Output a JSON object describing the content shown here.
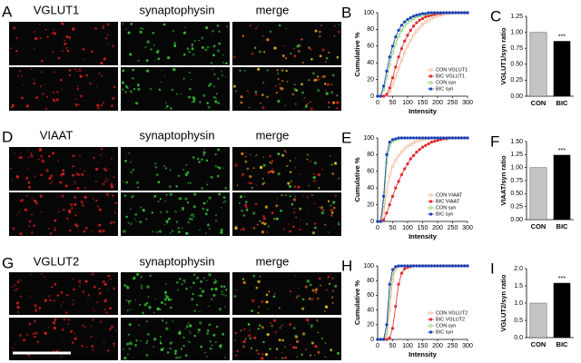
{
  "image_panels": [
    {
      "letter": "A",
      "labels": [
        "VGLUT1",
        "synaptophysin",
        "merge"
      ]
    },
    {
      "letter": "D",
      "labels": [
        "VIAAT",
        "synaptophysin",
        "merge"
      ]
    },
    {
      "letter": "G",
      "labels": [
        "VGLUT2",
        "synaptophysin",
        "merge"
      ]
    }
  ],
  "chart_data": [
    {
      "type": "line",
      "panel": "B",
      "x_label": "Intensity",
      "y_label": "Cumulative %",
      "x": [
        0,
        10,
        20,
        30,
        40,
        50,
        60,
        70,
        80,
        90,
        100,
        110,
        120,
        130,
        140,
        150,
        160,
        170,
        180,
        190,
        200,
        210,
        220,
        230,
        240,
        250,
        260,
        270,
        280,
        290,
        300
      ],
      "xlim": [
        0,
        300
      ],
      "xticks": [
        0,
        50,
        100,
        150,
        200,
        250,
        300
      ],
      "ylim": [
        0,
        100
      ],
      "yticks": [
        0,
        20,
        40,
        60,
        80,
        100
      ],
      "legend": "lower right",
      "series": [
        {
          "name": "CON VGLUT1",
          "color": "#f2a57a",
          "open": true,
          "values": [
            0,
            0,
            0,
            1,
            5,
            13,
            23,
            33,
            43,
            52,
            60,
            67,
            73,
            78,
            82,
            86,
            89,
            91,
            93,
            95,
            96,
            97,
            98,
            99,
            99,
            100,
            100,
            100,
            100,
            100,
            100
          ]
        },
        {
          "name": "BIC VGLUT1",
          "color": "#e3262a",
          "open": false,
          "values": [
            0,
            0,
            0,
            2,
            10,
            22,
            35,
            47,
            57,
            66,
            73,
            79,
            84,
            88,
            91,
            93,
            95,
            96,
            97,
            98,
            99,
            99,
            100,
            100,
            100,
            100,
            100,
            100,
            100,
            100,
            100
          ]
        },
        {
          "name": "CON syn",
          "color": "#6fc24b",
          "open": true,
          "values": [
            0,
            0,
            8,
            22,
            38,
            52,
            63,
            72,
            79,
            84,
            88,
            91,
            93,
            95,
            96,
            97,
            98,
            99,
            99,
            100,
            100,
            100,
            100,
            100,
            100,
            100,
            100,
            100,
            100,
            100,
            100
          ]
        },
        {
          "name": "BIC syn",
          "color": "#1d3fbf",
          "open": false,
          "values": [
            0,
            0,
            12,
            30,
            47,
            60,
            71,
            79,
            85,
            89,
            92,
            94,
            96,
            97,
            98,
            99,
            99,
            100,
            100,
            100,
            100,
            100,
            100,
            100,
            100,
            100,
            100,
            100,
            100,
            100,
            100
          ]
        }
      ]
    },
    {
      "type": "bar",
      "panel": "C",
      "y_label": "VGLUT1/syn ratio",
      "categories": [
        "CON",
        "BIC"
      ],
      "values": [
        1.0,
        0.86
      ],
      "colors": [
        "#c4c4c4",
        "#000000"
      ],
      "annotation": "***",
      "ylim": [
        0,
        1.25
      ],
      "yticks": [
        {
          "value": 0,
          "label": "0.00"
        },
        {
          "value": 0.25,
          "label": "0.25"
        },
        {
          "value": 0.5,
          "label": "0.50"
        },
        {
          "value": 0.75,
          "label": "0.75"
        },
        {
          "value": 1,
          "label": "1.00"
        },
        {
          "value": 1.25,
          "label": "1.25"
        }
      ]
    },
    {
      "type": "line",
      "panel": "E",
      "x_label": "Intensity",
      "y_label": "Cumulative %",
      "x": [
        0,
        10,
        20,
        30,
        40,
        50,
        60,
        70,
        80,
        90,
        100,
        110,
        120,
        130,
        140,
        150,
        160,
        170,
        180,
        190,
        200,
        210,
        220,
        230,
        240,
        250,
        260,
        270,
        280,
        290,
        300
      ],
      "xlim": [
        0,
        300
      ],
      "xticks": [
        0,
        50,
        100,
        150,
        200,
        250,
        300
      ],
      "ylim": [
        0,
        100
      ],
      "yticks": [
        0,
        20,
        40,
        60,
        80,
        100
      ],
      "legend": "lower right",
      "series": [
        {
          "name": "CON VIAAT",
          "color": "#f2a57a",
          "open": true,
          "values": [
            0,
            0,
            10,
            35,
            55,
            66,
            73,
            79,
            83,
            87,
            90,
            92,
            94,
            96,
            97,
            98,
            99,
            99,
            100,
            100,
            100,
            100,
            100,
            100,
            100,
            100,
            100,
            100,
            100,
            100,
            100
          ]
        },
        {
          "name": "BIC VIAAT",
          "color": "#e3262a",
          "open": false,
          "values": [
            0,
            0,
            2,
            10,
            20,
            30,
            40,
            48,
            56,
            63,
            69,
            75,
            79,
            83,
            86,
            89,
            91,
            93,
            95,
            96,
            97,
            98,
            99,
            99,
            100,
            100,
            100,
            100,
            100,
            100,
            100
          ]
        },
        {
          "name": "CON syn",
          "color": "#6fc24b",
          "open": true,
          "values": [
            0,
            0,
            20,
            70,
            90,
            96,
            98,
            99,
            100,
            100,
            100,
            100,
            100,
            100,
            100,
            100,
            100,
            100,
            100,
            100,
            100,
            100,
            100,
            100,
            100,
            100,
            100,
            100,
            100,
            100,
            100
          ]
        },
        {
          "name": "BIC syn",
          "color": "#1d3fbf",
          "open": false,
          "values": [
            0,
            0,
            30,
            80,
            95,
            98,
            99,
            100,
            100,
            100,
            100,
            100,
            100,
            100,
            100,
            100,
            100,
            100,
            100,
            100,
            100,
            100,
            100,
            100,
            100,
            100,
            100,
            100,
            100,
            100,
            100
          ]
        }
      ]
    },
    {
      "type": "bar",
      "panel": "F",
      "y_label": "VIAAT/syn ratio",
      "categories": [
        "CON",
        "BIC"
      ],
      "values": [
        1.0,
        1.24
      ],
      "colors": [
        "#c4c4c4",
        "#000000"
      ],
      "annotation": "***",
      "ylim": [
        0,
        1.5
      ],
      "yticks": [
        {
          "value": 0,
          "label": "0.00"
        },
        {
          "value": 0.25,
          "label": "0.25"
        },
        {
          "value": 0.5,
          "label": "0.50"
        },
        {
          "value": 0.75,
          "label": "0.75"
        },
        {
          "value": 1,
          "label": "1.00"
        },
        {
          "value": 1.25,
          "label": "1.25"
        },
        {
          "value": 1.5,
          "label": "1.50"
        }
      ]
    },
    {
      "type": "line",
      "panel": "H",
      "x_label": "Intensity",
      "y_label": "Cumulative %",
      "x": [
        0,
        10,
        20,
        30,
        40,
        50,
        60,
        70,
        80,
        90,
        100,
        110,
        120,
        130,
        140,
        150,
        160,
        170,
        180,
        190,
        200,
        210,
        220,
        230,
        240,
        250,
        260,
        270,
        280,
        290,
        300
      ],
      "xlim": [
        0,
        300
      ],
      "xticks": [
        0,
        50,
        100,
        150,
        200,
        250,
        300
      ],
      "ylim": [
        0,
        100
      ],
      "yticks": [
        0,
        20,
        40,
        60,
        80,
        100
      ],
      "legend": "lower right",
      "series": [
        {
          "name": "CON VGLUT2",
          "color": "#f2a57a",
          "open": true,
          "values": [
            0,
            0,
            0,
            5,
            40,
            80,
            95,
            99,
            100,
            100,
            100,
            100,
            100,
            100,
            100,
            100,
            100,
            100,
            100,
            100,
            100,
            100,
            100,
            100,
            100,
            100,
            100,
            100,
            100,
            100,
            100
          ]
        },
        {
          "name": "BIC VGLUT2",
          "color": "#e3262a",
          "open": false,
          "values": [
            0,
            0,
            0,
            0,
            2,
            15,
            45,
            75,
            90,
            96,
            98,
            99,
            100,
            100,
            100,
            100,
            100,
            100,
            100,
            100,
            100,
            100,
            100,
            100,
            100,
            100,
            100,
            100,
            100,
            100,
            100
          ]
        },
        {
          "name": "CON syn",
          "color": "#6fc24b",
          "open": true,
          "values": [
            0,
            0,
            0,
            10,
            60,
            90,
            98,
            100,
            100,
            100,
            100,
            100,
            100,
            100,
            100,
            100,
            100,
            100,
            100,
            100,
            100,
            100,
            100,
            100,
            100,
            100,
            100,
            100,
            100,
            100,
            100
          ]
        },
        {
          "name": "BIC syn",
          "color": "#1d3fbf",
          "open": false,
          "values": [
            0,
            0,
            0,
            20,
            75,
            95,
            99,
            100,
            100,
            100,
            100,
            100,
            100,
            100,
            100,
            100,
            100,
            100,
            100,
            100,
            100,
            100,
            100,
            100,
            100,
            100,
            100,
            100,
            100,
            100,
            100
          ]
        }
      ]
    },
    {
      "type": "bar",
      "panel": "I",
      "y_label": "VGLUT2/syn ratio",
      "categories": [
        "CON",
        "BIC"
      ],
      "values": [
        1.0,
        1.58
      ],
      "colors": [
        "#c4c4c4",
        "#000000"
      ],
      "annotation": "***",
      "ylim": [
        0,
        2
      ],
      "yticks": [
        {
          "value": 0,
          "label": "0.0"
        },
        {
          "value": 0.5,
          "label": "0.5"
        },
        {
          "value": 1,
          "label": "1.0"
        },
        {
          "value": 1.5,
          "label": "1.5"
        },
        {
          "value": 2,
          "label": "2.0"
        }
      ]
    }
  ]
}
